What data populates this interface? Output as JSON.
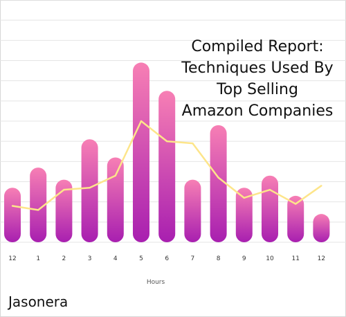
{
  "chart_data": {
    "type": "bar",
    "title_lines": [
      "Compiled Report:",
      "Techniques Used By",
      "Top Selling",
      "Amazon Companies"
    ],
    "xlabel": "Hours",
    "ylabel": "",
    "categories": [
      "12",
      "1",
      "2",
      "3",
      "4",
      "5",
      "6",
      "7",
      "8",
      "9",
      "10",
      "11",
      "12"
    ],
    "series": [
      {
        "type": "bar",
        "values": [
          2.7,
          3.7,
          3.1,
          5.1,
          4.2,
          8.9,
          7.5,
          3.1,
          5.8,
          2.7,
          3.3,
          2.3,
          1.4
        ],
        "color_top": "#f77fb4",
        "color_bottom": "#a81fb0"
      },
      {
        "type": "line",
        "values": [
          1.8,
          1.6,
          2.6,
          2.7,
          3.3,
          6.0,
          5.0,
          4.9,
          3.2,
          2.2,
          2.6,
          1.9,
          2.8
        ],
        "color": "#fde58a"
      }
    ],
    "ylim": [
      0,
      12
    ],
    "grid": true,
    "legend": "none"
  },
  "branding": {
    "text": "Jasonera"
  }
}
